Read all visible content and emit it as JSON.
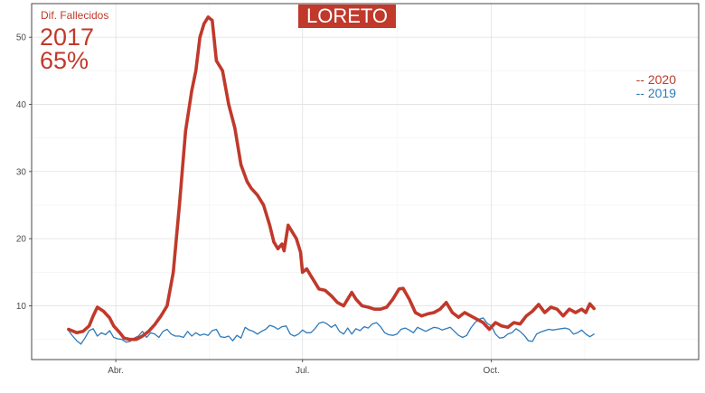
{
  "title": "LORETO",
  "annotation": {
    "label": "Dif. Fallecidos",
    "year": "2017",
    "percent": "65%"
  },
  "legend": [
    {
      "text": "-- 2020",
      "color": "#c0392b"
    },
    {
      "text": "-- 2019",
      "color": "#2f7ab9"
    }
  ],
  "chart_data": {
    "type": "line",
    "x_ticks": [
      "Abr.",
      "Jul.",
      "Oct."
    ],
    "y_ticks": [
      10,
      20,
      30,
      40,
      50
    ],
    "ylim": [
      2,
      55
    ],
    "x_unit": "day_of_year",
    "xlim": [
      50,
      375
    ],
    "x_tick_days": [
      91,
      182,
      274
    ],
    "grid": true,
    "series": [
      {
        "name": "2020",
        "color": "#c0392b",
        "points": [
          [
            68,
            6.5
          ],
          [
            72,
            6
          ],
          [
            75,
            6.2
          ],
          [
            78,
            7
          ],
          [
            80,
            8.5
          ],
          [
            82,
            9.8
          ],
          [
            85,
            9.2
          ],
          [
            88,
            8.2
          ],
          [
            90,
            7
          ],
          [
            93,
            6
          ],
          [
            95,
            5.2
          ],
          [
            98,
            5
          ],
          [
            101,
            5
          ],
          [
            104,
            5.5
          ],
          [
            107,
            6.2
          ],
          [
            110,
            7.2
          ],
          [
            113,
            8.5
          ],
          [
            116,
            10
          ],
          [
            119,
            15
          ],
          [
            122,
            25
          ],
          [
            125,
            36
          ],
          [
            128,
            42
          ],
          [
            130,
            45
          ],
          [
            132,
            50
          ],
          [
            134,
            52
          ],
          [
            136,
            53
          ],
          [
            138,
            52.5
          ],
          [
            140,
            46.5
          ],
          [
            143,
            45
          ],
          [
            146,
            40
          ],
          [
            149,
            36.5
          ],
          [
            152,
            31
          ],
          [
            155,
            28.5
          ],
          [
            157,
            27.5
          ],
          [
            160,
            26.5
          ],
          [
            163,
            25
          ],
          [
            166,
            22
          ],
          [
            168,
            19.5
          ],
          [
            170,
            18.5
          ],
          [
            172,
            19.2
          ],
          [
            173,
            18.2
          ],
          [
            175,
            22
          ],
          [
            177,
            21
          ],
          [
            179,
            20
          ],
          [
            181,
            18
          ],
          [
            182,
            15
          ],
          [
            184,
            15.5
          ],
          [
            186,
            14.5
          ],
          [
            188,
            13.5
          ],
          [
            190,
            12.5
          ],
          [
            193,
            12.3
          ],
          [
            196,
            11.5
          ],
          [
            199,
            10.5
          ],
          [
            202,
            10
          ],
          [
            204,
            11
          ],
          [
            206,
            12
          ],
          [
            208,
            11
          ],
          [
            211,
            10
          ],
          [
            214,
            9.8
          ],
          [
            217,
            9.5
          ],
          [
            220,
            9.5
          ],
          [
            223,
            9.8
          ],
          [
            226,
            11
          ],
          [
            229,
            12.5
          ],
          [
            231,
            12.6
          ],
          [
            234,
            11
          ],
          [
            237,
            9
          ],
          [
            240,
            8.5
          ],
          [
            243,
            8.8
          ],
          [
            246,
            9
          ],
          [
            249,
            9.5
          ],
          [
            252,
            10.5
          ],
          [
            255,
            9
          ],
          [
            258,
            8.3
          ],
          [
            261,
            9
          ],
          [
            264,
            8.5
          ],
          [
            267,
            8
          ],
          [
            270,
            7.5
          ],
          [
            273,
            6.5
          ],
          [
            276,
            7.5
          ],
          [
            279,
            7
          ],
          [
            282,
            6.8
          ],
          [
            285,
            7.5
          ],
          [
            288,
            7.3
          ],
          [
            291,
            8.5
          ],
          [
            294,
            9.2
          ],
          [
            297,
            10.2
          ],
          [
            300,
            9
          ],
          [
            303,
            9.8
          ],
          [
            306,
            9.5
          ],
          [
            309,
            8.5
          ],
          [
            312,
            9.5
          ],
          [
            315,
            9
          ],
          [
            318,
            9.5
          ],
          [
            320,
            9
          ],
          [
            322,
            10.3
          ],
          [
            324,
            9.6
          ]
        ],
        "width": 3.6
      },
      {
        "name": "2019",
        "color": "#2f7ab9",
        "points": [
          [
            68,
            6.3
          ],
          [
            70,
            5.5
          ],
          [
            72,
            4.8
          ],
          [
            74,
            4.3
          ],
          [
            76,
            5.2
          ],
          [
            78,
            6.3
          ],
          [
            80,
            6.6
          ],
          [
            82,
            5.5
          ],
          [
            84,
            6
          ],
          [
            86,
            5.7
          ],
          [
            88,
            6.3
          ],
          [
            90,
            5.3
          ],
          [
            92,
            5.1
          ],
          [
            94,
            5
          ],
          [
            96,
            4.6
          ],
          [
            98,
            4.7
          ],
          [
            100,
            5.2
          ],
          [
            102,
            5.5
          ],
          [
            104,
            6.2
          ],
          [
            106,
            5.3
          ],
          [
            108,
            6
          ],
          [
            110,
            5.8
          ],
          [
            112,
            5.3
          ],
          [
            114,
            6.2
          ],
          [
            116,
            6.5
          ],
          [
            118,
            5.8
          ],
          [
            120,
            5.5
          ],
          [
            122,
            5.5
          ],
          [
            124,
            5.3
          ],
          [
            126,
            6.2
          ],
          [
            128,
            5.5
          ],
          [
            130,
            6
          ],
          [
            132,
            5.6
          ],
          [
            134,
            5.8
          ],
          [
            136,
            5.6
          ],
          [
            138,
            6.3
          ],
          [
            140,
            6.5
          ],
          [
            142,
            5.4
          ],
          [
            144,
            5.3
          ],
          [
            146,
            5.5
          ],
          [
            148,
            4.8
          ],
          [
            150,
            5.6
          ],
          [
            152,
            5.2
          ],
          [
            154,
            6.8
          ],
          [
            156,
            6.4
          ],
          [
            158,
            6.2
          ],
          [
            160,
            5.8
          ],
          [
            162,
            6.2
          ],
          [
            164,
            6.5
          ],
          [
            166,
            7.1
          ],
          [
            168,
            6.9
          ],
          [
            170,
            6.5
          ],
          [
            172,
            6.9
          ],
          [
            174,
            7
          ],
          [
            176,
            5.8
          ],
          [
            178,
            5.5
          ],
          [
            180,
            5.8
          ],
          [
            182,
            6.4
          ],
          [
            184,
            6
          ],
          [
            186,
            6
          ],
          [
            188,
            6.6
          ],
          [
            190,
            7.4
          ],
          [
            192,
            7.6
          ],
          [
            194,
            7.3
          ],
          [
            196,
            6.8
          ],
          [
            198,
            7.2
          ],
          [
            200,
            6.2
          ],
          [
            202,
            5.8
          ],
          [
            204,
            6.7
          ],
          [
            206,
            5.8
          ],
          [
            208,
            6.6
          ],
          [
            210,
            6.3
          ],
          [
            212,
            6.9
          ],
          [
            214,
            6.7
          ],
          [
            216,
            7.3
          ],
          [
            218,
            7.5
          ],
          [
            220,
            6.9
          ],
          [
            222,
            6
          ],
          [
            224,
            5.7
          ],
          [
            226,
            5.6
          ],
          [
            228,
            5.8
          ],
          [
            230,
            6.5
          ],
          [
            232,
            6.7
          ],
          [
            234,
            6.4
          ],
          [
            236,
            6
          ],
          [
            238,
            6.8
          ],
          [
            240,
            6.5
          ],
          [
            242,
            6.2
          ],
          [
            244,
            6.5
          ],
          [
            246,
            6.8
          ],
          [
            248,
            6.7
          ],
          [
            250,
            6.4
          ],
          [
            252,
            6.6
          ],
          [
            254,
            6.8
          ],
          [
            256,
            6.2
          ],
          [
            258,
            5.6
          ],
          [
            260,
            5.3
          ],
          [
            262,
            5.6
          ],
          [
            264,
            6.7
          ],
          [
            266,
            7.5
          ],
          [
            268,
            8
          ],
          [
            270,
            8.2
          ],
          [
            272,
            7.4
          ],
          [
            274,
            7
          ],
          [
            276,
            5.8
          ],
          [
            278,
            5.2
          ],
          [
            280,
            5.3
          ],
          [
            282,
            5.8
          ],
          [
            284,
            6
          ],
          [
            286,
            6.6
          ],
          [
            288,
            6.2
          ],
          [
            290,
            5.6
          ],
          [
            292,
            4.8
          ],
          [
            294,
            4.7
          ],
          [
            296,
            5.8
          ],
          [
            298,
            6.1
          ],
          [
            300,
            6.3
          ],
          [
            302,
            6.5
          ],
          [
            304,
            6.4
          ],
          [
            306,
            6.5
          ],
          [
            308,
            6.6
          ],
          [
            310,
            6.7
          ],
          [
            312,
            6.5
          ],
          [
            314,
            5.8
          ],
          [
            316,
            6
          ],
          [
            318,
            6.4
          ],
          [
            320,
            5.8
          ],
          [
            322,
            5.4
          ],
          [
            324,
            5.8
          ]
        ],
        "width": 1.3
      }
    ]
  }
}
